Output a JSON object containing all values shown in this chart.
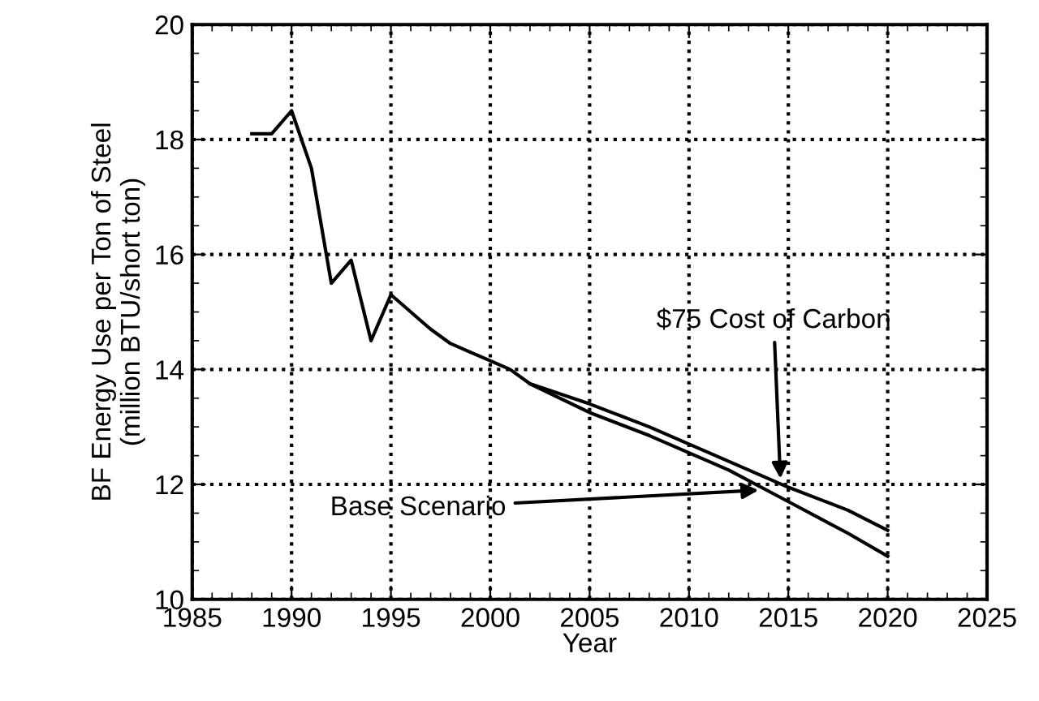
{
  "chart_data": {
    "type": "line",
    "xlabel": "Year",
    "ylabel": "BF Energy Use per Ton of Steel\n(million BTU/short ton)",
    "series": [
      {
        "color": "#000000",
        "x": [
          2002,
          2005,
          2008,
          2010,
          2012,
          2015,
          2018,
          2020
        ],
        "values": [
          13.75,
          13.4,
          13.0,
          12.7,
          12.4,
          11.95,
          11.55,
          11.2
        ]
      },
      {
        "color": "#000000",
        "x": [
          1988,
          1989,
          1990,
          1991,
          1992,
          1993,
          1994,
          1995,
          1996,
          1997,
          1998,
          1999,
          2000,
          2001,
          2002,
          2005,
          2008,
          2010,
          2012,
          2015,
          2018,
          2020
        ],
        "values": [
          18.1,
          18.1,
          18.5,
          17.5,
          15.5,
          15.9,
          14.5,
          15.3,
          15.0,
          14.7,
          14.45,
          14.3,
          14.15,
          14.0,
          13.75,
          13.25,
          12.85,
          12.55,
          12.25,
          11.7,
          11.15,
          10.75
        ]
      }
    ],
    "annotations": [
      {
        "text": "$75 Cost of Carbon",
        "x": 2014.6,
        "y": 12.1
      },
      {
        "text": "Base Scenario",
        "x": 2013.5,
        "y": 11.9
      }
    ],
    "xlim": [
      1985,
      2025
    ],
    "xticks": [
      1985,
      1990,
      1995,
      2000,
      2005,
      2010,
      2015,
      2020,
      2025
    ],
    "ylim": [
      10,
      20
    ],
    "yticks": [
      10,
      12,
      14,
      16,
      18,
      20
    ],
    "grid": true,
    "line_style": "solid",
    "marker": "none",
    "legend": false
  }
}
